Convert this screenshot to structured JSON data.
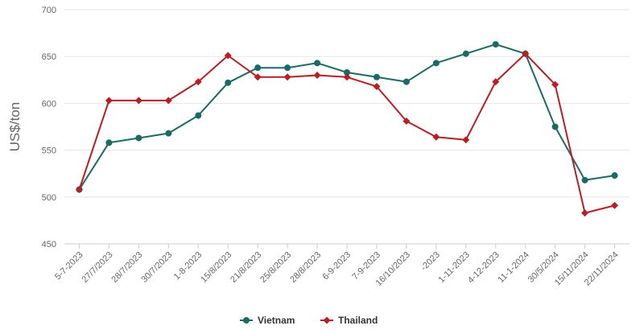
{
  "chart_data": {
    "type": "line",
    "ylabel": "US$/ton",
    "xlabel": "",
    "ylim": [
      450,
      700
    ],
    "yticks": [
      450,
      500,
      550,
      600,
      650,
      700
    ],
    "grid": "horizontal",
    "legend_position": "bottom-center",
    "categories": [
      "5-7-2023",
      "27/7/2023",
      "28/7/2023",
      "30/7/2023",
      "1-8-2023",
      "15/8/2023",
      "21/8/2023",
      "25/8/2023",
      "28/8/2023",
      "6-9-2023",
      "7-9-2023",
      "16/10/2023",
      "-2023",
      "1-11-2023",
      "4-12-2023",
      "11-1-2024",
      "30/5/2024",
      "15/11/2024",
      "22/11/2024"
    ],
    "series": [
      {
        "name": "Vietnam",
        "color": "#1a6b63",
        "marker": "circle",
        "values": [
          508,
          558,
          563,
          568,
          587,
          622,
          638,
          638,
          643,
          633,
          628,
          623,
          643,
          653,
          663,
          653,
          575,
          518,
          523
        ]
      },
      {
        "name": "Thailand",
        "color": "#b81f24",
        "marker": "diamond",
        "values": [
          508,
          603,
          603,
          603,
          623,
          651,
          628,
          628,
          630,
          628,
          618,
          581,
          564,
          561,
          623,
          653,
          620,
          483,
          491
        ]
      }
    ]
  }
}
